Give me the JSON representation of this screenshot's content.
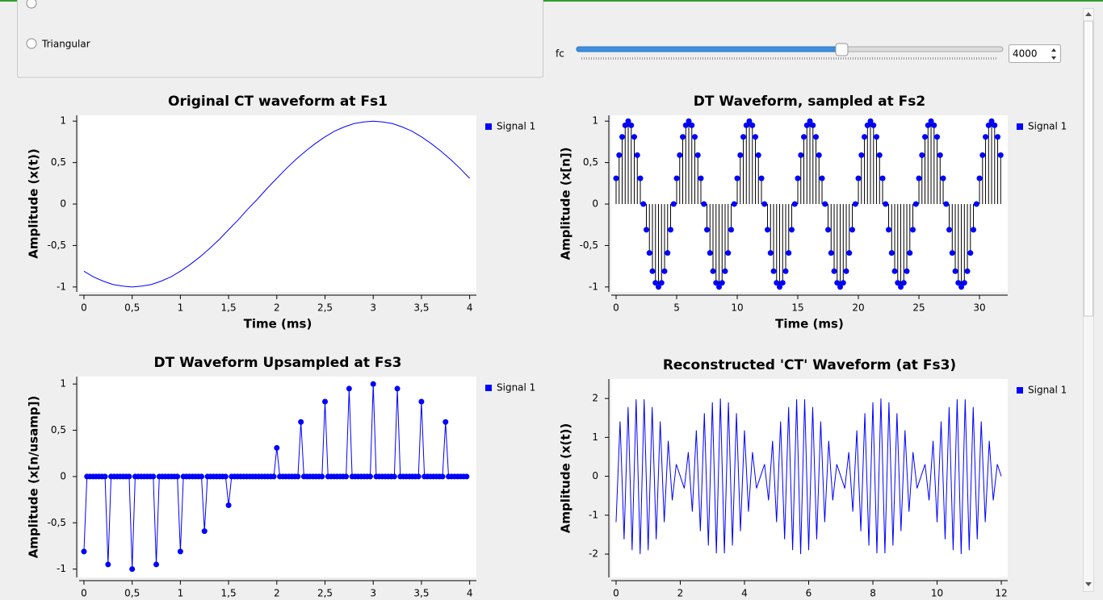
{
  "controls": {
    "radio_options": [
      "Triangular"
    ],
    "slider": {
      "label": "fc",
      "value": 4000
    }
  },
  "chart_data": [
    {
      "type": "line",
      "title": "Original CT waveform at Fs1",
      "x_label": "Time (ms)",
      "y_label": "Amplitude (x(t))",
      "x": [
        0,
        0.1,
        0.2,
        0.3,
        0.4,
        0.5,
        0.6,
        0.7,
        0.8,
        0.9,
        1,
        1.1,
        1.2,
        1.3,
        1.4,
        1.5,
        1.6,
        1.7,
        1.8,
        1.9,
        2,
        2.1,
        2.2,
        2.3,
        2.4,
        2.5,
        2.6,
        2.7,
        2.8,
        2.9,
        3,
        3.1,
        3.2,
        3.3,
        3.4,
        3.5,
        3.6,
        3.7,
        3.8,
        3.9,
        4
      ],
      "series": [
        {
          "name": "Signal 1",
          "color": "#0000ff",
          "values": [
            -0.81,
            -0.88,
            -0.93,
            -0.97,
            -0.99,
            -1,
            -0.99,
            -0.97,
            -0.93,
            -0.88,
            -0.81,
            -0.73,
            -0.64,
            -0.54,
            -0.43,
            -0.31,
            -0.19,
            -0.06,
            0.06,
            0.19,
            0.31,
            0.43,
            0.54,
            0.64,
            0.73,
            0.81,
            0.88,
            0.93,
            0.97,
            0.99,
            1,
            0.99,
            0.97,
            0.93,
            0.88,
            0.81,
            0.73,
            0.64,
            0.54,
            0.43,
            0.31
          ]
        }
      ],
      "xlim": [
        -0.05,
        4.07
      ],
      "xticks": [
        0,
        {
          "value": 0.5,
          "label": "0,5"
        },
        1,
        {
          "value": 1.5,
          "label": "1,5"
        },
        2,
        {
          "value": 2.5,
          "label": "2,5"
        },
        3,
        {
          "value": 3.5,
          "label": "3,5"
        },
        4
      ],
      "ylim": [
        -1.06,
        1.07
      ],
      "yticks": [
        -1,
        {
          "value": -0.5,
          "label": "-0,5"
        },
        0,
        {
          "value": 0.5,
          "label": "0,5"
        },
        1
      ],
      "grid": false,
      "legend": "right"
    },
    {
      "type": "stem",
      "title": "DT Waveform, sampled at Fs2",
      "x_label": "Time (ms)",
      "y_label": "Amplitude (x[n])",
      "x": [
        0,
        0.25,
        0.5,
        0.75,
        1,
        1.25,
        1.5,
        1.75,
        2,
        2.25,
        2.5,
        2.75,
        3,
        3.25,
        3.5,
        3.75,
        4,
        4.25,
        4.5,
        4.75,
        5,
        5.25,
        5.5,
        5.75,
        6,
        6.25,
        6.5,
        6.75,
        7,
        7.25,
        7.5,
        7.75,
        8,
        8.25,
        8.5,
        8.75,
        9,
        9.25,
        9.5,
        9.75,
        10,
        10.25,
        10.5,
        10.75,
        11,
        11.25,
        11.5,
        11.75,
        12,
        12.25,
        12.5,
        12.75,
        13,
        13.25,
        13.5,
        13.75,
        14,
        14.25,
        14.5,
        14.75,
        15,
        15.25,
        15.5,
        15.75,
        16,
        16.25,
        16.5,
        16.75,
        17,
        17.25,
        17.5,
        17.75,
        18,
        18.25,
        18.5,
        18.75,
        19,
        19.25,
        19.5,
        19.75,
        20,
        20.25,
        20.5,
        20.75,
        21,
        21.25,
        21.5,
        21.75,
        22,
        22.25,
        22.5,
        22.75,
        23,
        23.25,
        23.5,
        23.75,
        24,
        24.25,
        24.5,
        24.75,
        25,
        25.25,
        25.5,
        25.75,
        26,
        26.25,
        26.5,
        26.75,
        27,
        27.25,
        27.5,
        27.75,
        28,
        28.25,
        28.5,
        28.75,
        29,
        29.25,
        29.5,
        29.75,
        30,
        30.25,
        30.5,
        30.75,
        31,
        31.25,
        31.5,
        31.75
      ],
      "series": [
        {
          "name": "Signal 1",
          "color": "#0000ff",
          "values": [
            0.31,
            0.59,
            0.81,
            0.95,
            1,
            0.95,
            0.81,
            0.59,
            0.31,
            0,
            -0.31,
            -0.59,
            -0.81,
            -0.95,
            -1,
            -0.95,
            -0.81,
            -0.59,
            -0.31,
            0,
            0.31,
            0.59,
            0.81,
            0.95,
            1,
            0.95,
            0.81,
            0.59,
            0.31,
            0,
            -0.31,
            -0.59,
            -0.81,
            -0.95,
            -1,
            -0.95,
            -0.81,
            -0.59,
            -0.31,
            0,
            0.31,
            0.59,
            0.81,
            0.95,
            1,
            0.95,
            0.81,
            0.59,
            0.31,
            0,
            -0.31,
            -0.59,
            -0.81,
            -0.95,
            -1,
            -0.95,
            -0.81,
            -0.59,
            -0.31,
            0,
            0.31,
            0.59,
            0.81,
            0.95,
            1,
            0.95,
            0.81,
            0.59,
            0.31,
            0,
            -0.31,
            -0.59,
            -0.81,
            -0.95,
            -1,
            -0.95,
            -0.81,
            -0.59,
            -0.31,
            0,
            0.31,
            0.59,
            0.81,
            0.95,
            1,
            0.95,
            0.81,
            0.59,
            0.31,
            0,
            -0.31,
            -0.59,
            -0.81,
            -0.95,
            -1,
            -0.95,
            -0.81,
            -0.59,
            -0.31,
            0,
            0.31,
            0.59,
            0.81,
            0.95,
            1,
            0.95,
            0.81,
            0.59,
            0.31,
            0,
            -0.31,
            -0.59,
            -0.81,
            -0.95,
            -1,
            -0.95,
            -0.81,
            -0.59,
            -0.31,
            0,
            0.31,
            0.59,
            0.81,
            0.95,
            1,
            0.95,
            0.81,
            0.59
          ]
        }
      ],
      "xlim": [
        -0.4,
        32.33
      ],
      "xticks": [
        0,
        5,
        10,
        15,
        20,
        25,
        30
      ],
      "ylim": [
        -1.06,
        1.07
      ],
      "yticks": [
        -1,
        {
          "value": -0.5,
          "label": "-0,5"
        },
        0,
        {
          "value": 0.5,
          "label": "0,5"
        },
        1
      ],
      "grid": false,
      "legend": "right"
    },
    {
      "type": "line",
      "markers": true,
      "title": "DT Waveform Upsampled at Fs3",
      "y_label": "Amplitude (x[n/usamp])",
      "x": [
        0,
        0.03125,
        0.0625,
        0.09375,
        0.125,
        0.15625,
        0.1875,
        0.21875,
        0.25,
        0.28125,
        0.3125,
        0.34375,
        0.375,
        0.40625,
        0.4375,
        0.46875,
        0.5,
        0.53125,
        0.5625,
        0.59375,
        0.625,
        0.65625,
        0.6875,
        0.71875,
        0.75,
        0.78125,
        0.8125,
        0.84375,
        0.875,
        0.90625,
        0.9375,
        0.96875,
        1,
        1.03125,
        1.0625,
        1.09375,
        1.125,
        1.15625,
        1.1875,
        1.21875,
        1.25,
        1.28125,
        1.3125,
        1.34375,
        1.375,
        1.40625,
        1.4375,
        1.46875,
        1.5,
        1.53125,
        1.5625,
        1.59375,
        1.625,
        1.65625,
        1.6875,
        1.71875,
        1.75,
        1.78125,
        1.8125,
        1.84375,
        1.875,
        1.90625,
        1.9375,
        1.96875,
        2,
        2.03125,
        2.0625,
        2.09375,
        2.125,
        2.15625,
        2.1875,
        2.21875,
        2.25,
        2.28125,
        2.3125,
        2.34375,
        2.375,
        2.40625,
        2.4375,
        2.46875,
        2.5,
        2.53125,
        2.5625,
        2.59375,
        2.625,
        2.65625,
        2.6875,
        2.71875,
        2.75,
        2.78125,
        2.8125,
        2.84375,
        2.875,
        2.90625,
        2.9375,
        2.96875,
        3,
        3.03125,
        3.0625,
        3.09375,
        3.125,
        3.15625,
        3.1875,
        3.21875,
        3.25,
        3.28125,
        3.3125,
        3.34375,
        3.375,
        3.40625,
        3.4375,
        3.46875,
        3.5,
        3.53125,
        3.5625,
        3.59375,
        3.625,
        3.65625,
        3.6875,
        3.71875,
        3.75,
        3.78125,
        3.8125,
        3.84375,
        3.875,
        3.90625,
        3.9375,
        3.96875
      ],
      "series": [
        {
          "name": "Signal 1",
          "color": "#0000ff",
          "values": [
            -0.81,
            0,
            0,
            0,
            0,
            0,
            0,
            0,
            -0.95,
            0,
            0,
            0,
            0,
            0,
            0,
            0,
            -1,
            0,
            0,
            0,
            0,
            0,
            0,
            0,
            -0.95,
            0,
            0,
            0,
            0,
            0,
            0,
            0,
            -0.81,
            0,
            0,
            0,
            0,
            0,
            0,
            0,
            -0.59,
            0,
            0,
            0,
            0,
            0,
            0,
            0,
            -0.31,
            0,
            0,
            0,
            0,
            0,
            0,
            0,
            0,
            0,
            0,
            0,
            0,
            0,
            0,
            0,
            0.31,
            0,
            0,
            0,
            0,
            0,
            0,
            0,
            0.59,
            0,
            0,
            0,
            0,
            0,
            0,
            0,
            0.81,
            0,
            0,
            0,
            0,
            0,
            0,
            0,
            0.95,
            0,
            0,
            0,
            0,
            0,
            0,
            0,
            1,
            0,
            0,
            0,
            0,
            0,
            0,
            0,
            0.95,
            0,
            0,
            0,
            0,
            0,
            0,
            0,
            0.81,
            0,
            0,
            0,
            0,
            0,
            0,
            0,
            0.59,
            0,
            0,
            0,
            0,
            0,
            0,
            0
          ]
        }
      ],
      "xlim": [
        -0.05,
        4.07
      ],
      "xticks": [
        0,
        {
          "value": 0.5,
          "label": "0,5"
        },
        1,
        {
          "value": 1.5,
          "label": "1,5"
        },
        2,
        {
          "value": 2.5,
          "label": "2,5"
        },
        3,
        {
          "value": 3.5,
          "label": "3,5"
        },
        4
      ],
      "ylim": [
        -1.09,
        1.08
      ],
      "yticks": [
        -1,
        {
          "value": -0.5,
          "label": "-0,5"
        },
        0,
        {
          "value": 0.5,
          "label": "0,5"
        },
        1
      ],
      "grid": false,
      "legend": "right"
    },
    {
      "type": "line",
      "title": "Reconstructed 'CT' Waveform (at Fs3)",
      "y_label": "Amplitude (x(t))",
      "x": [
        0,
        0.125,
        0.25,
        0.375,
        0.5,
        0.625,
        0.75,
        0.875,
        1,
        1.125,
        1.25,
        1.375,
        1.5,
        1.625,
        1.75,
        1.875,
        2,
        2.125,
        2.25,
        2.375,
        2.5,
        2.625,
        2.75,
        2.875,
        3,
        3.125,
        3.25,
        3.375,
        3.5,
        3.625,
        3.75,
        3.875,
        4,
        4.125,
        4.25,
        4.375,
        4.5,
        4.625,
        4.75,
        4.875,
        5,
        5.125,
        5.25,
        5.375,
        5.5,
        5.625,
        5.75,
        5.875,
        6,
        6.125,
        6.25,
        6.375,
        6.5,
        6.625,
        6.75,
        6.875,
        7,
        7.125,
        7.25,
        7.375,
        7.5,
        7.625,
        7.75,
        7.875,
        8,
        8.125,
        8.25,
        8.375,
        8.5,
        8.625,
        8.75,
        8.875,
        9,
        9.125,
        9.25,
        9.375,
        9.5,
        9.625,
        9.75,
        9.875,
        10,
        10.125,
        10.25,
        10.375,
        10.5,
        10.625,
        10.75,
        10.875,
        11,
        11.125,
        11.25,
        11.375,
        11.5,
        11.625,
        11.75,
        11.875,
        12
      ],
      "series": [
        {
          "name": "Signal 1",
          "color": "#0000ff",
          "values": [
            -1.18,
            1.41,
            -1.62,
            1.78,
            -1.9,
            1.98,
            -2,
            1.98,
            -1.9,
            1.78,
            -1.62,
            1.41,
            -1.18,
            0.91,
            -0.62,
            0.31,
            0,
            -0.31,
            0.62,
            -0.91,
            1.18,
            -1.41,
            1.62,
            -1.78,
            1.9,
            -1.98,
            2,
            -1.98,
            1.9,
            -1.78,
            1.62,
            -1.41,
            1.18,
            -0.91,
            0.62,
            -0.31,
            0,
            0.31,
            -0.62,
            0.91,
            -1.18,
            1.41,
            -1.62,
            1.78,
            -1.9,
            1.98,
            -2,
            1.98,
            -1.9,
            1.78,
            -1.62,
            1.41,
            -1.18,
            0.91,
            -0.62,
            0.31,
            0,
            -0.31,
            0.62,
            -0.91,
            1.18,
            -1.41,
            1.62,
            -1.78,
            1.9,
            -1.98,
            2,
            -1.98,
            1.9,
            -1.78,
            1.62,
            -1.41,
            1.18,
            -0.91,
            0.62,
            -0.31,
            0,
            0.31,
            -0.62,
            0.91,
            -1.18,
            1.41,
            -1.62,
            1.78,
            -1.9,
            1.98,
            -2,
            1.98,
            -1.9,
            1.78,
            -1.62,
            1.41,
            -1.18,
            0.91,
            -0.62,
            0.31,
            0
          ]
        }
      ],
      "xlim": [
        -0.15,
        12.2
      ],
      "xticks": [
        0,
        2,
        4,
        6,
        8,
        10,
        12
      ],
      "ylim": [
        -2.6,
        2.5
      ],
      "yticks": [
        -2,
        -1,
        0,
        1,
        2
      ],
      "grid": false,
      "legend": "right"
    }
  ]
}
